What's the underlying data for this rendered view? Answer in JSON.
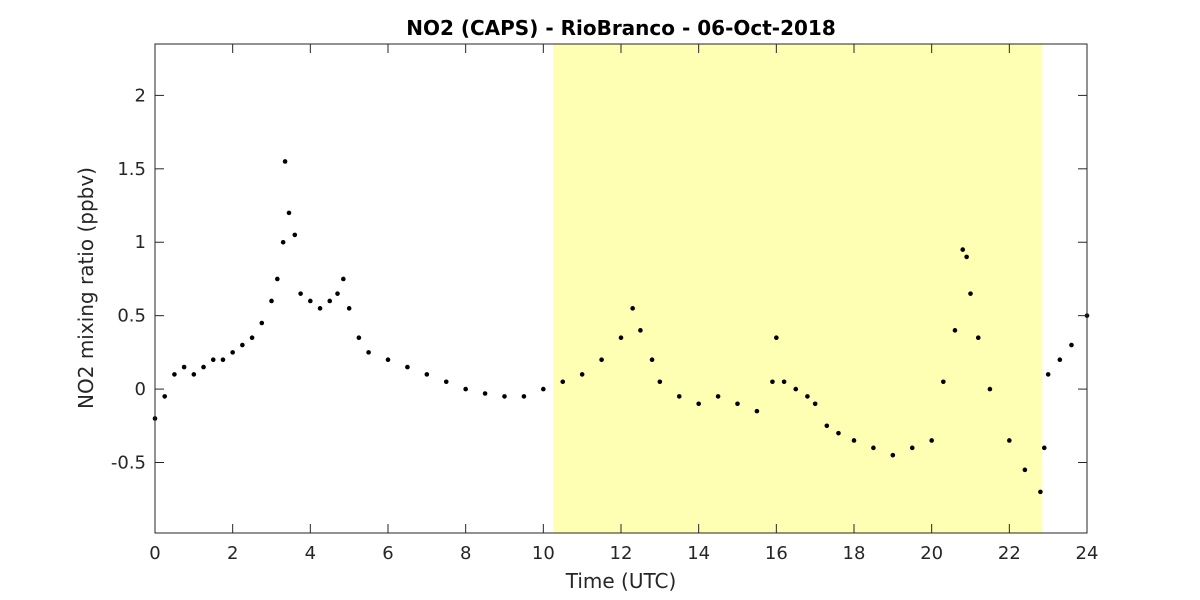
{
  "chart_data": {
    "type": "scatter",
    "title": "NO2 (CAPS) - RioBranco - 06-Oct-2018",
    "xlabel": "Time (UTC)",
    "ylabel": "NO2 mixing ratio (ppbv)",
    "xlim": [
      0,
      24
    ],
    "ylim": [
      -0.98,
      2.35
    ],
    "xticks": [
      0,
      2,
      4,
      6,
      8,
      10,
      12,
      14,
      16,
      18,
      20,
      22,
      24
    ],
    "yticks": [
      -0.5,
      0,
      0.5,
      1,
      1.5,
      2
    ],
    "xtick_labels": [
      "0",
      "2",
      "4",
      "6",
      "8",
      "10",
      "12",
      "14",
      "16",
      "18",
      "20",
      "22",
      "24"
    ],
    "ytick_labels": [
      "-0.5",
      "0",
      "0.5",
      "1",
      "1.5",
      "2"
    ],
    "grid": false,
    "shaded_region": {
      "x_start": 10.25,
      "x_end": 22.85,
      "color": "#ffffb3"
    },
    "marker_color": "#000000",
    "series": [
      {
        "x": [
          0.0,
          0.25,
          0.5,
          0.75,
          1.0,
          1.25,
          1.5,
          1.75,
          2.0,
          2.25,
          2.5,
          2.75,
          3.0,
          3.15,
          3.3,
          3.35,
          3.45,
          3.6,
          3.75,
          4.0,
          4.25,
          4.5,
          4.7,
          4.85,
          5.0,
          5.25,
          5.5,
          6.0,
          6.5,
          7.0,
          7.5,
          8.0,
          8.5,
          9.0,
          9.5,
          10.0,
          10.5,
          11.0,
          11.5,
          12.0,
          12.3,
          12.5,
          12.8,
          13.0,
          13.5,
          14.0,
          14.5,
          15.0,
          15.5,
          15.9,
          16.0,
          16.2,
          16.5,
          16.8,
          17.0,
          17.3,
          17.6,
          18.0,
          18.5,
          19.0,
          19.5,
          20.0,
          20.3,
          20.6,
          20.8,
          20.9,
          21.0,
          21.2,
          21.5,
          22.0,
          22.4,
          22.8,
          22.9,
          23.0,
          23.3,
          23.6,
          24.0
        ],
        "y": [
          -0.2,
          -0.05,
          0.1,
          0.15,
          0.1,
          0.15,
          0.2,
          0.2,
          0.25,
          0.3,
          0.35,
          0.45,
          0.6,
          0.75,
          1.0,
          1.55,
          1.2,
          1.05,
          0.65,
          0.6,
          0.55,
          0.6,
          0.65,
          0.75,
          0.55,
          0.35,
          0.25,
          0.2,
          0.15,
          0.1,
          0.05,
          0.0,
          -0.03,
          -0.05,
          -0.05,
          0.0,
          0.05,
          0.1,
          0.2,
          0.35,
          0.55,
          0.4,
          0.2,
          0.05,
          -0.05,
          -0.1,
          -0.05,
          -0.1,
          -0.15,
          0.05,
          0.35,
          0.05,
          0.0,
          -0.05,
          -0.1,
          -0.25,
          -0.3,
          -0.35,
          -0.4,
          -0.45,
          -0.4,
          -0.35,
          0.05,
          0.4,
          0.95,
          0.9,
          0.65,
          0.35,
          0.0,
          -0.35,
          -0.55,
          -0.7,
          -0.4,
          0.1,
          0.2,
          0.3,
          0.5
        ]
      }
    ]
  }
}
